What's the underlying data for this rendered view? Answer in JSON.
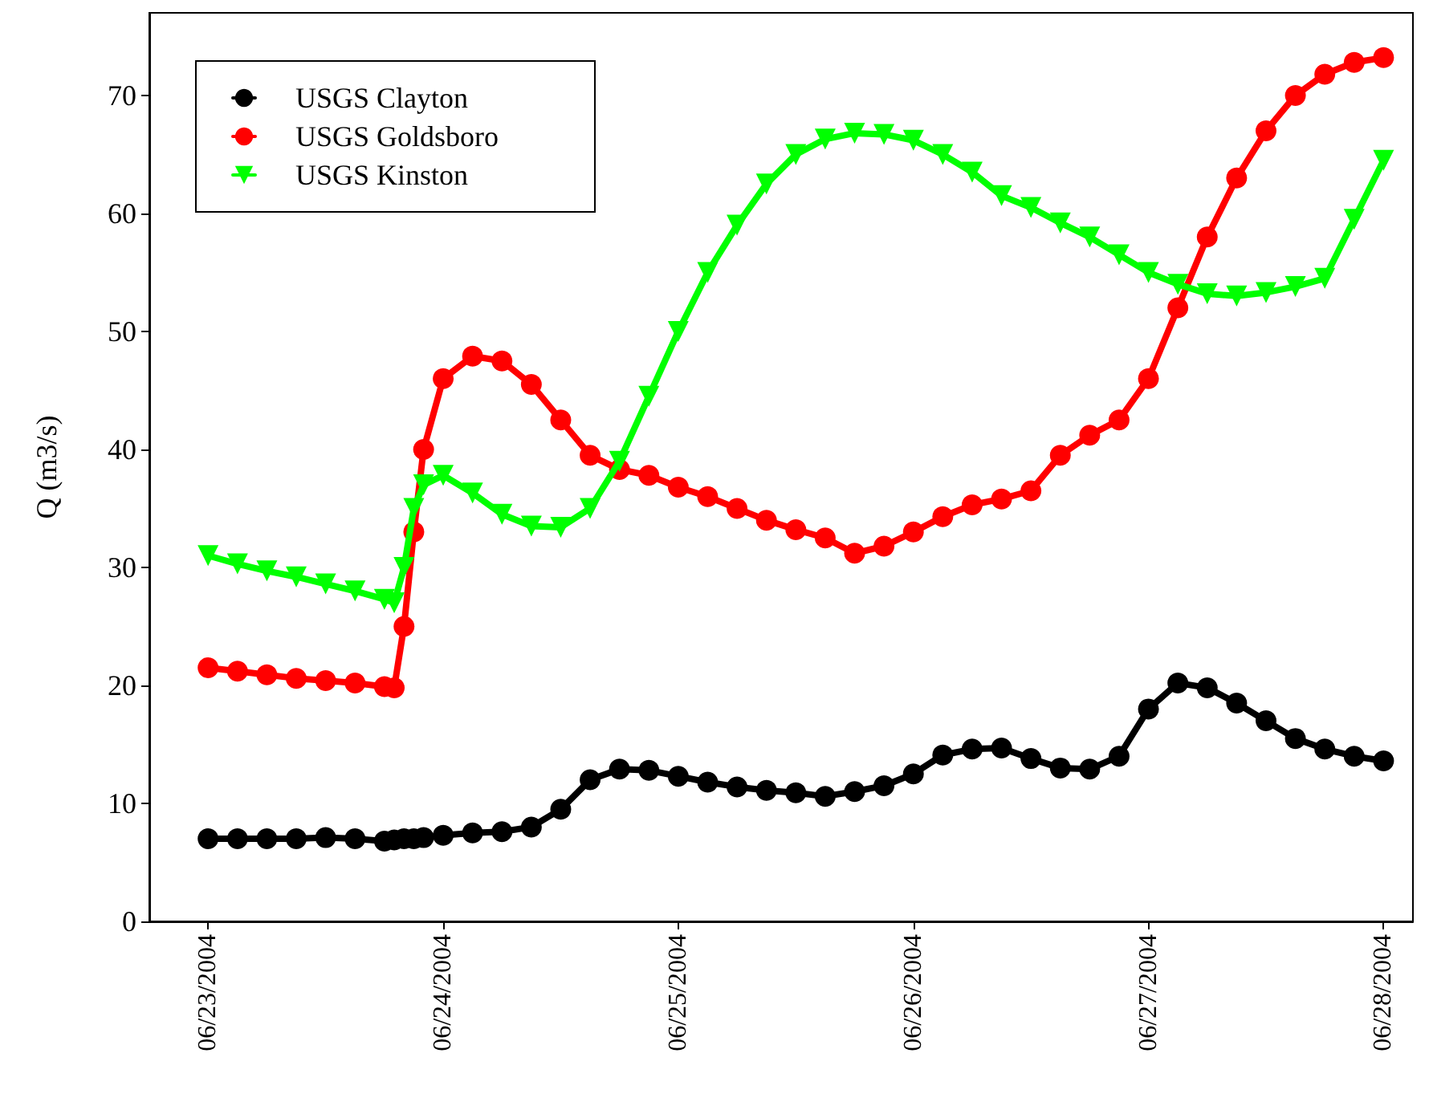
{
  "chart_data": {
    "type": "line",
    "ylabel": "Q (m3/s)",
    "x": [
      "2004-06-23T00:00",
      "2004-06-23T03:00",
      "2004-06-23T06:00",
      "2004-06-23T09:00",
      "2004-06-23T12:00",
      "2004-06-23T15:00",
      "2004-06-23T18:00",
      "2004-06-23T19:00",
      "2004-06-23T20:00",
      "2004-06-23T21:00",
      "2004-06-23T22:00",
      "2004-06-24T00:00",
      "2004-06-24T03:00",
      "2004-06-24T06:00",
      "2004-06-24T09:00",
      "2004-06-24T12:00",
      "2004-06-24T15:00",
      "2004-06-24T18:00",
      "2004-06-24T21:00",
      "2004-06-25T00:00",
      "2004-06-25T03:00",
      "2004-06-25T06:00",
      "2004-06-25T09:00",
      "2004-06-25T12:00",
      "2004-06-25T15:00",
      "2004-06-25T18:00",
      "2004-06-25T21:00",
      "2004-06-26T00:00",
      "2004-06-26T03:00",
      "2004-06-26T06:00",
      "2004-06-26T09:00",
      "2004-06-26T12:00",
      "2004-06-26T15:00",
      "2004-06-26T18:00",
      "2004-06-26T21:00",
      "2004-06-27T00:00",
      "2004-06-27T03:00",
      "2004-06-27T06:00",
      "2004-06-27T09:00",
      "2004-06-27T12:00",
      "2004-06-27T15:00",
      "2004-06-27T18:00",
      "2004-06-27T21:00",
      "2004-06-28T00:00"
    ],
    "series": [
      {
        "name": "USGS Clayton",
        "color": "#000000",
        "marker": "circle",
        "values": [
          7.0,
          7.0,
          7.0,
          7.0,
          7.1,
          7.0,
          6.8,
          6.9,
          7.0,
          7.0,
          7.1,
          7.3,
          7.5,
          7.6,
          8.0,
          9.5,
          12.0,
          12.9,
          12.8,
          12.3,
          11.8,
          11.4,
          11.1,
          10.9,
          10.6,
          11.0,
          11.5,
          12.5,
          14.1,
          14.6,
          14.7,
          13.8,
          13.0,
          12.9,
          14.0,
          18.0,
          20.2,
          19.8,
          18.5,
          17.0,
          15.5,
          14.6,
          14.0,
          13.6
        ]
      },
      {
        "name": "USGS Goldsboro",
        "color": "#ff0000",
        "marker": "circle",
        "values": [
          21.5,
          21.2,
          20.9,
          20.6,
          20.4,
          20.2,
          19.9,
          19.8,
          25,
          33,
          40,
          46,
          47.9,
          47.5,
          45.5,
          42.5,
          39.5,
          38.3,
          37.8,
          36.8,
          36.0,
          35.0,
          34.0,
          33.2,
          32.5,
          31.2,
          31.8,
          33.0,
          34.3,
          35.3,
          35.8,
          36.5,
          39.5,
          41.2,
          42.5,
          46,
          52,
          58,
          63,
          67,
          70,
          71.8,
          72.8,
          73.2
        ]
      },
      {
        "name": "USGS Kinston",
        "color": "#00ff00",
        "marker": "triangle",
        "values": [
          31,
          30.3,
          29.7,
          29.2,
          28.6,
          28.0,
          27.3,
          27.0,
          30,
          35,
          37,
          37.8,
          36.3,
          34.5,
          33.5,
          33.4,
          35.0,
          39.0,
          44.5,
          50.0,
          55.0,
          59.0,
          62.5,
          65.0,
          66.3,
          66.8,
          66.7,
          66.2,
          65.0,
          63.5,
          61.5,
          60.5,
          59.2,
          58.0,
          56.5,
          55.0,
          54.0,
          53.2,
          53.0,
          53.3,
          53.8,
          54.5,
          59.5,
          64.5
        ]
      }
    ],
    "xlim": [
      "2004-06-22T18:00",
      "2004-06-28T03:00"
    ],
    "xticks": [
      {
        "value": "2004-06-23",
        "label": "06/23/2004"
      },
      {
        "value": "2004-06-24",
        "label": "06/24/2004"
      },
      {
        "value": "2004-06-25",
        "label": "06/25/2004"
      },
      {
        "value": "2004-06-26",
        "label": "06/26/2004"
      },
      {
        "value": "2004-06-27",
        "label": "06/27/2004"
      },
      {
        "value": "2004-06-28",
        "label": "06/28/2004"
      }
    ],
    "ylim": [
      0,
      77
    ],
    "yticks": [
      0,
      10,
      20,
      30,
      40,
      50,
      60,
      70
    ],
    "grid": false,
    "legend": "top left"
  }
}
